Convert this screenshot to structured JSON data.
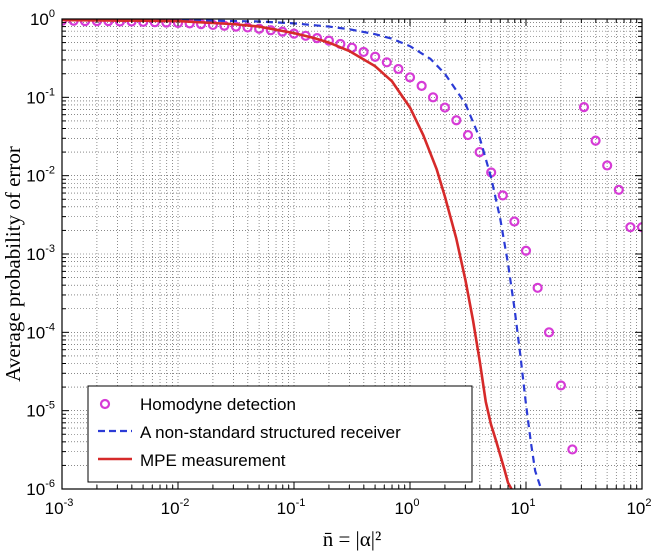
{
  "chart_data": {
    "type": "line",
    "xlabel": "n̄ = |α|²",
    "ylabel": "Average probability of error",
    "xscale": "log",
    "yscale": "log",
    "xlim": [
      0.001,
      100
    ],
    "ylim": [
      1e-06,
      1
    ],
    "grid": true,
    "legend_position": "bottom-left",
    "x_tick_labels": [
      {
        "base": "10",
        "exp": "-3"
      },
      {
        "base": "10",
        "exp": "-2"
      },
      {
        "base": "10",
        "exp": "-1"
      },
      {
        "base": "10",
        "exp": "0"
      },
      {
        "base": "10",
        "exp": "1"
      },
      {
        "base": "10",
        "exp": "2"
      }
    ],
    "y_tick_labels": [
      {
        "base": "10",
        "exp": "0"
      },
      {
        "base": "10",
        "exp": "-1"
      },
      {
        "base": "10",
        "exp": "-2"
      },
      {
        "base": "10",
        "exp": "-3"
      },
      {
        "base": "10",
        "exp": "-4"
      },
      {
        "base": "10",
        "exp": "-5"
      },
      {
        "base": "10",
        "exp": "-6"
      }
    ],
    "series": [
      {
        "name": "Homodyne detection",
        "style": "circles",
        "color": "#d63bd6",
        "x": [
          0.001,
          0.00126,
          0.00158,
          0.002,
          0.00251,
          0.00316,
          0.00398,
          0.00501,
          0.00631,
          0.00794,
          0.01,
          0.0126,
          0.0158,
          0.02,
          0.0251,
          0.0316,
          0.0398,
          0.0501,
          0.0631,
          0.0794,
          0.1,
          0.126,
          0.158,
          0.2,
          0.251,
          0.316,
          0.398,
          0.501,
          0.631,
          0.794,
          1,
          1.26,
          1.58,
          2,
          2.51,
          3.16,
          3.98,
          5.01,
          6.31,
          7.94,
          10,
          12.6,
          15.8,
          20,
          25.1,
          31.6,
          39.8,
          50.1,
          63.1,
          79.4,
          100
        ],
        "values": [
          0.95,
          0.95,
          0.94,
          0.94,
          0.94,
          0.93,
          0.93,
          0.92,
          0.91,
          0.9,
          0.89,
          0.88,
          0.86,
          0.84,
          0.82,
          0.8,
          0.78,
          0.75,
          0.72,
          0.69,
          0.65,
          0.61,
          0.57,
          0.53,
          0.48,
          0.43,
          0.38,
          0.33,
          0.28,
          0.23,
          0.18,
          0.14,
          0.1,
          0.074,
          0.051,
          0.033,
          0.02,
          0.011,
          0.0056,
          0.0026,
          0.0011,
          0.00037,
          0.0001,
          2.1e-05,
          3.2e-06,
          0.075,
          0.028,
          0.0135,
          0.0066,
          0.0022,
          0.0022
        ]
      },
      {
        "name": "A non-standard structured receiver",
        "style": "dashed",
        "color": "#2b3bd6",
        "x": [
          0.001,
          0.01,
          0.05,
          0.1,
          0.2,
          0.3,
          0.5,
          0.7,
          1,
          1.5,
          2,
          3,
          4,
          5,
          6,
          7,
          8,
          9,
          10,
          11,
          12,
          13.5
        ],
        "values": [
          0.98,
          0.97,
          0.93,
          0.88,
          0.8,
          0.74,
          0.64,
          0.56,
          0.45,
          0.31,
          0.2,
          0.083,
          0.03,
          0.0095,
          0.0028,
          0.00075,
          0.00019,
          4.7e-05,
          1.2e-05,
          4e-06,
          1.7e-06,
          1e-06
        ]
      },
      {
        "name": "MPE measurement",
        "style": "solid",
        "color": "#d62a2a",
        "x": [
          0.001,
          0.01,
          0.03,
          0.05,
          0.1,
          0.15,
          0.2,
          0.3,
          0.5,
          0.7,
          1,
          1.3,
          1.7,
          2,
          2.5,
          3,
          3.5,
          4,
          4.5,
          5,
          5.5,
          6,
          6.5,
          7,
          7.5
        ],
        "values": [
          0.97,
          0.94,
          0.86,
          0.8,
          0.66,
          0.57,
          0.5,
          0.39,
          0.25,
          0.16,
          0.074,
          0.033,
          0.012,
          0.0054,
          0.0016,
          0.00047,
          0.00014,
          4.2e-05,
          1.3e-05,
          6.6e-06,
          4.2e-06,
          2.7e-06,
          1.8e-06,
          1.2e-06,
          1e-06
        ]
      }
    ]
  }
}
